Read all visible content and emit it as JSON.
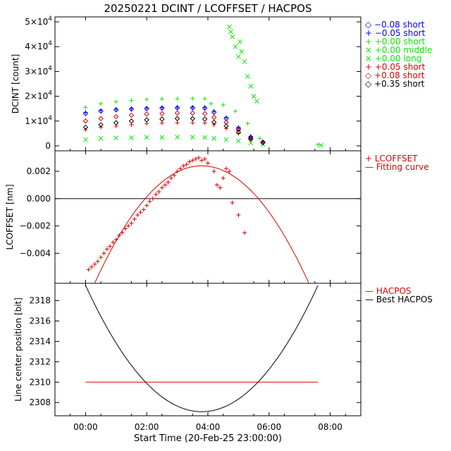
{
  "title": "20250221 DCINT / LCOFFSET / HACPOS",
  "xlabel": "Start Time (20-Feb-25 23:00:00)",
  "x_ticks": [
    "00:00",
    "02:00",
    "04:00",
    "06:00",
    "08:00"
  ],
  "x_tick_hours": [
    0,
    2,
    4,
    6,
    8
  ],
  "xlim_hours": [
    -1,
    9
  ],
  "chart_data": [
    {
      "type": "scatter",
      "id": "dcint",
      "ylabel": "DCINT [count]",
      "ylim": [
        -2000,
        52000
      ],
      "y_ticks": [
        {
          "value": 0,
          "mant": "0",
          "exp": ""
        },
        {
          "value": 10000,
          "mant": "1×10",
          "exp": "4"
        },
        {
          "value": 20000,
          "mant": "2×10",
          "exp": "4"
        },
        {
          "value": 30000,
          "mant": "3×10",
          "exp": "4"
        },
        {
          "value": 40000,
          "mant": "4×10",
          "exp": "4"
        },
        {
          "value": 50000,
          "mant": "5×10",
          "exp": "4"
        }
      ],
      "series": [
        {
          "name": "-0.08 short",
          "label": "◇ −0.08 short",
          "color": "#0000ff",
          "marker": "diamond",
          "x": [
            0,
            0.5,
            1,
            1.5,
            2,
            2.5,
            3,
            3.5,
            3.9,
            4.2,
            4.6,
            5,
            5.4,
            5.8
          ],
          "y": [
            13000,
            14000,
            14500,
            14800,
            15000,
            15200,
            15300,
            15300,
            15200,
            13500,
            11000,
            7000,
            3500,
            1500
          ]
        },
        {
          "name": "-0.05 short",
          "label": "+ −0.05 short",
          "color": "#0000ff",
          "marker": "plus",
          "x": [
            0,
            0.5,
            1,
            1.5,
            2,
            2.5,
            3,
            3.5,
            3.9,
            4.2,
            4.6,
            5,
            5.4,
            5.8
          ],
          "y": [
            13500,
            14300,
            14800,
            15100,
            15300,
            15500,
            15600,
            15600,
            15500,
            14000,
            11500,
            7500,
            3800,
            1600
          ]
        },
        {
          "name": "+0.00 short",
          "label": "+ +0.00 short",
          "color": "#00ee00",
          "marker": "plus",
          "x": [
            0,
            0.5,
            1,
            1.5,
            2,
            2.5,
            3,
            3.5,
            3.9,
            4.1,
            4.5,
            4.9,
            5.3,
            5.7,
            7.6
          ],
          "y": [
            15500,
            17000,
            17800,
            18300,
            18700,
            18900,
            19000,
            19100,
            19000,
            17000,
            16500,
            14000,
            9000,
            3000,
            500
          ]
        },
        {
          "name": "+0.00 middle",
          "label": "× +0.00 middle",
          "color": "#00ee00",
          "marker": "cross",
          "x": [
            4.7,
            4.75,
            4.8,
            4.9,
            5.0,
            5.05,
            5.1,
            5.2,
            5.3,
            5.4,
            5.5,
            5.6
          ],
          "y": [
            48000,
            46000,
            44000,
            40000,
            36000,
            42000,
            38000,
            34000,
            28000,
            24000,
            20000,
            18000
          ]
        },
        {
          "name": "+0.00 long",
          "label": "× +0.00 long",
          "color": "#00ee00",
          "marker": "cross",
          "x": [
            0,
            0.5,
            1,
            1.5,
            2,
            2.5,
            3,
            3.5,
            3.9,
            4.2,
            4.6,
            5,
            5.4,
            5.8,
            7.7
          ],
          "y": [
            2500,
            3000,
            3200,
            3300,
            3400,
            3400,
            3500,
            3500,
            3400,
            3000,
            2500,
            2000,
            1200,
            600,
            200
          ]
        },
        {
          "name": "+0.05 short",
          "label": "+ +0.05 short",
          "color": "#dd0000",
          "marker": "plus",
          "x": [
            0,
            0.5,
            1,
            1.5,
            2,
            2.5,
            3,
            3.5,
            3.9,
            4.2,
            4.6,
            5,
            5.4,
            5.8
          ],
          "y": [
            6500,
            7500,
            8000,
            8500,
            9000,
            9200,
            9300,
            9300,
            9200,
            8500,
            7000,
            5000,
            2500,
            1200
          ]
        },
        {
          "name": "+0.08 short",
          "label": "◇ +0.08 short",
          "color": "#dd0000",
          "marker": "diamond",
          "x": [
            0,
            0.5,
            1,
            1.5,
            2,
            2.5,
            3,
            3.5,
            3.9,
            4.2,
            4.6,
            5,
            5.4,
            5.8
          ],
          "y": [
            10000,
            11000,
            11800,
            12300,
            12800,
            13000,
            13200,
            13200,
            13000,
            11500,
            9500,
            6500,
            3000,
            1400
          ]
        },
        {
          "name": "+0.35 short",
          "label": "◇ +0.35 short",
          "color": "#000000",
          "marker": "diamond",
          "x": [
            0,
            0.5,
            1,
            1.5,
            2,
            2.5,
            3,
            3.5,
            3.9,
            4.2,
            4.6,
            5,
            5.4,
            5.8
          ],
          "y": [
            7500,
            8500,
            9300,
            10000,
            10500,
            10800,
            11000,
            11000,
            10800,
            9500,
            8000,
            5500,
            2800,
            1300
          ]
        }
      ]
    },
    {
      "type": "scatter",
      "id": "lcoffset",
      "ylabel": "LCOFFSET [nm]",
      "ylim": [
        -0.0062,
        0.0035
      ],
      "y_ticks": [
        {
          "value": 0.002,
          "label": "0.002"
        },
        {
          "value": 0.0,
          "label": "0.000"
        },
        {
          "value": -0.002,
          "label": "−0.002"
        },
        {
          "value": -0.004,
          "label": "−0.004"
        }
      ],
      "zero_line": 0.0,
      "series": [
        {
          "name": "LCOFFSET",
          "label": "+ LCOFFSET",
          "color": "#dd0000",
          "marker": "plus",
          "x": [
            0.1,
            0.2,
            0.3,
            0.4,
            0.5,
            0.6,
            0.7,
            0.8,
            0.9,
            1.0,
            1.1,
            1.2,
            1.3,
            1.4,
            1.5,
            1.6,
            1.7,
            1.8,
            1.9,
            2.0,
            2.1,
            2.2,
            2.3,
            2.4,
            2.5,
            2.6,
            2.7,
            2.8,
            2.9,
            3.0,
            3.1,
            3.2,
            3.3,
            3.4,
            3.5,
            3.6,
            3.7,
            3.8,
            3.9,
            4.0,
            4.2,
            4.3,
            4.4,
            4.5,
            4.6,
            4.7,
            4.8,
            5.0,
            5.2
          ],
          "y": [
            -0.0052,
            -0.005,
            -0.0048,
            -0.0046,
            -0.0043,
            -0.004,
            -0.0037,
            -0.0035,
            -0.0032,
            -0.003,
            -0.0027,
            -0.0025,
            -0.0022,
            -0.002,
            -0.0018,
            -0.0015,
            -0.0012,
            -0.001,
            -0.0008,
            -0.0005,
            -0.0002,
            0.0,
            0.0003,
            0.0005,
            0.0008,
            0.001,
            0.0012,
            0.0015,
            0.0017,
            0.002,
            0.0022,
            0.0024,
            0.0025,
            0.0027,
            0.0028,
            0.0029,
            0.003,
            0.0028,
            0.0029,
            0.0026,
            0.002,
            0.001,
            0.0008,
            0.0015,
            0.0022,
            0.002,
            -0.0003,
            -0.0012,
            -0.0025
          ]
        },
        {
          "name": "Fitting curve",
          "label": "— Fitting curve",
          "color": "#dd0000",
          "marker": "line",
          "curve": "parabola",
          "vertex_x": 3.8,
          "vertex_y": 0.0024,
          "root_x": 1.95
        }
      ]
    },
    {
      "type": "line",
      "id": "hacpos",
      "ylabel": "Line center position [bit]",
      "ylim": [
        2306.7,
        2319.7
      ],
      "y_ticks": [
        {
          "value": 2308,
          "label": "2308"
        },
        {
          "value": 2310,
          "label": "2310"
        },
        {
          "value": 2312,
          "label": "2312"
        },
        {
          "value": 2314,
          "label": "2314"
        },
        {
          "value": 2316,
          "label": "2316"
        },
        {
          "value": 2318,
          "label": "2318"
        }
      ],
      "series": [
        {
          "name": "HACPOS",
          "label": "— HACPOS",
          "color": "#dd0000",
          "marker": "line",
          "x": [
            0,
            7.6
          ],
          "y": [
            2310,
            2310
          ]
        },
        {
          "name": "Best HACPOS",
          "label": "— Best HACPOS",
          "color": "#000000",
          "marker": "line",
          "curve": "parabola",
          "vertex_x": 3.8,
          "vertex_y": 2307.1,
          "range": [
            0,
            7.6
          ],
          "end_y": 2319.5
        }
      ]
    }
  ]
}
